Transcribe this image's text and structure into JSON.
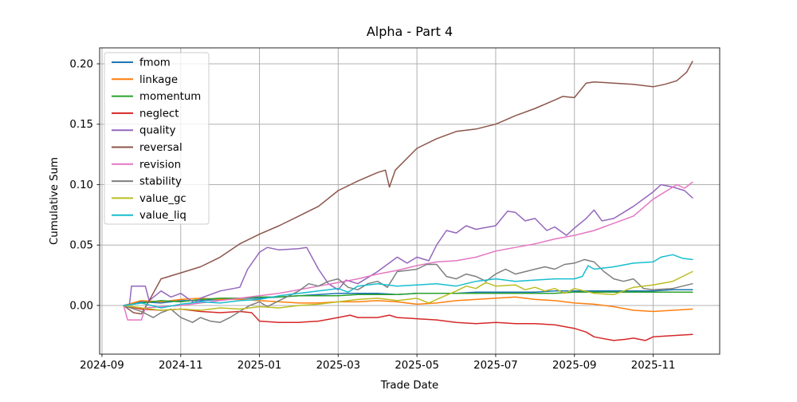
{
  "chart_data": {
    "type": "line",
    "title": "Alpha - Part 4",
    "xlabel": "Trade Date",
    "ylabel": "Cumulative Sum",
    "x_unit": "months since 2024-09-01",
    "xlim": [
      -0.06,
      15.69
    ],
    "ylim": [
      -0.0403,
      0.2132
    ],
    "grid": true,
    "grid_color": "#b0b0b0",
    "legend_position": "upper left",
    "xticks": [
      {
        "m": 0,
        "label": "2024-09"
      },
      {
        "m": 2,
        "label": "2024-11"
      },
      {
        "m": 4,
        "label": "2025-01"
      },
      {
        "m": 6,
        "label": "2025-03"
      },
      {
        "m": 8,
        "label": "2025-05"
      },
      {
        "m": 10,
        "label": "2025-07"
      },
      {
        "m": 12,
        "label": "2025-09"
      },
      {
        "m": 14,
        "label": "2025-11"
      }
    ],
    "yticks": [
      {
        "v": 0.0,
        "label": "0.00"
      },
      {
        "v": 0.05,
        "label": "0.05"
      },
      {
        "v": 0.1,
        "label": "0.10"
      },
      {
        "v": 0.15,
        "label": "0.15"
      },
      {
        "v": 0.2,
        "label": "0.20"
      }
    ],
    "series": [
      {
        "name": "fmom",
        "color": "#1f77b4",
        "x": [
          0.55,
          1,
          1.5,
          2,
          2.5,
          3,
          3.5,
          4,
          4.5,
          5,
          5.5,
          6,
          6.5,
          7,
          7.5,
          8,
          8.5,
          9,
          9.5,
          10,
          10.5,
          11,
          11.5,
          12,
          12.5,
          13,
          13.5,
          14,
          14.5,
          15
        ],
        "y": [
          0,
          0.003,
          0.002,
          0.004,
          0.004,
          0.005,
          0.006,
          0.006,
          0.007,
          0.008,
          0.009,
          0.01,
          0.01,
          0.01,
          0.009,
          0.01,
          0.01,
          0.01,
          0.011,
          0.011,
          0.011,
          0.011,
          0.012,
          0.012,
          0.012,
          0.012,
          0.012,
          0.012,
          0.013,
          0.013
        ]
      },
      {
        "name": "linkage",
        "color": "#ff7f0e",
        "x": [
          0.55,
          1,
          1.5,
          2,
          2.5,
          3,
          3.5,
          4,
          4.5,
          5,
          5.5,
          6,
          6.5,
          7,
          7.5,
          8,
          8.5,
          9,
          9.5,
          10,
          10.5,
          11,
          11.5,
          12,
          12.5,
          13,
          13.5,
          14,
          14.5,
          15
        ],
        "y": [
          0,
          0.004,
          0.003,
          0.005,
          0.006,
          0.005,
          0.005,
          0.004,
          0.003,
          0.002,
          0.002,
          0.003,
          0.003,
          0.004,
          0.003,
          0.001,
          0.002,
          0.004,
          0.005,
          0.006,
          0.007,
          0.005,
          0.004,
          0.002,
          0.001,
          -0.001,
          -0.004,
          -0.005,
          -0.004,
          -0.003
        ]
      },
      {
        "name": "momentum",
        "color": "#2ca02c",
        "x": [
          0.55,
          1,
          1.5,
          2,
          2.5,
          3,
          3.5,
          4,
          4.5,
          5,
          5.5,
          6,
          6.5,
          7,
          7.5,
          8,
          8.5,
          9,
          9.5,
          10,
          10.5,
          11,
          11.5,
          12,
          12.5,
          13,
          13.5,
          14,
          14.5,
          15
        ],
        "y": [
          0,
          0.002,
          0.004,
          0.003,
          0.005,
          0.006,
          0.006,
          0.007,
          0.007,
          0.008,
          0.008,
          0.008,
          0.009,
          0.009,
          0.009,
          0.01,
          0.01,
          0.01,
          0.01,
          0.01,
          0.01,
          0.01,
          0.01,
          0.011,
          0.011,
          0.011,
          0.011,
          0.011,
          0.011,
          0.011
        ]
      },
      {
        "name": "neglect",
        "color": "#d62728",
        "x": [
          0.55,
          1,
          1.5,
          2,
          2.5,
          3,
          3.5,
          3.8,
          4,
          4.5,
          5,
          5.5,
          6,
          6.3,
          6.5,
          7,
          7.3,
          7.5,
          8,
          8.5,
          9,
          9.5,
          10,
          10.5,
          11,
          11.5,
          12,
          12.3,
          12.5,
          13,
          13.3,
          13.5,
          13.8,
          14,
          14.5,
          15
        ],
        "y": [
          0,
          -0.003,
          -0.004,
          -0.003,
          -0.005,
          -0.006,
          -0.005,
          -0.006,
          -0.013,
          -0.014,
          -0.014,
          -0.013,
          -0.01,
          -0.008,
          -0.01,
          -0.01,
          -0.008,
          -0.01,
          -0.011,
          -0.012,
          -0.014,
          -0.015,
          -0.014,
          -0.015,
          -0.015,
          -0.016,
          -0.019,
          -0.022,
          -0.026,
          -0.029,
          -0.028,
          -0.027,
          -0.029,
          -0.026,
          -0.025,
          -0.024
        ]
      },
      {
        "name": "quality",
        "color": "#9467bd",
        "x": [
          0.55,
          0.7,
          0.75,
          1.1,
          1.2,
          1.5,
          1.75,
          2,
          2.35,
          2.5,
          3,
          3.5,
          3.7,
          4,
          4.2,
          4.5,
          5,
          5.2,
          5.5,
          5.75,
          6,
          6.2,
          6.5,
          7,
          7.5,
          7.75,
          8,
          8.3,
          8.5,
          8.75,
          9,
          9.25,
          9.5,
          10,
          10.3,
          10.5,
          10.75,
          11,
          11.3,
          11.5,
          11.8,
          12,
          12.3,
          12.5,
          12.7,
          13,
          13.3,
          13.5,
          14,
          14.2,
          14.5,
          14.8,
          15
        ],
        "y": [
          0,
          0.001,
          0.016,
          0.016,
          0.004,
          0.012,
          0.007,
          0.01,
          0.002,
          0.006,
          0.012,
          0.015,
          0.03,
          0.044,
          0.048,
          0.046,
          0.047,
          0.048,
          0.03,
          0.018,
          0.013,
          0.021,
          0.018,
          0.028,
          0.04,
          0.035,
          0.04,
          0.037,
          0.05,
          0.062,
          0.06,
          0.066,
          0.063,
          0.066,
          0.078,
          0.077,
          0.07,
          0.072,
          0.062,
          0.065,
          0.058,
          0.064,
          0.072,
          0.079,
          0.07,
          0.072,
          0.078,
          0.082,
          0.094,
          0.1,
          0.098,
          0.095,
          0.089
        ]
      },
      {
        "name": "reversal",
        "color": "#8c564b",
        "x": [
          0.55,
          0.8,
          1,
          1.2,
          1.5,
          2,
          2.5,
          3,
          3.5,
          4,
          4.5,
          5,
          5.5,
          6,
          6.5,
          7,
          7.2,
          7.3,
          7.45,
          8,
          8.5,
          9,
          9.5,
          10,
          10.5,
          11,
          11.5,
          11.7,
          12,
          12.3,
          12.5,
          13,
          13.5,
          14,
          14.3,
          14.6,
          14.85,
          15
        ],
        "y": [
          0,
          -0.006,
          -0.007,
          0.004,
          0.022,
          0.027,
          0.032,
          0.04,
          0.051,
          0.059,
          0.066,
          0.074,
          0.082,
          0.095,
          0.103,
          0.11,
          0.112,
          0.098,
          0.112,
          0.13,
          0.138,
          0.144,
          0.146,
          0.15,
          0.157,
          0.163,
          0.17,
          0.173,
          0.172,
          0.184,
          0.185,
          0.184,
          0.183,
          0.181,
          0.183,
          0.186,
          0.193,
          0.202
        ]
      },
      {
        "name": "revision",
        "color": "#e377c2",
        "x": [
          0.55,
          0.65,
          1,
          1.1,
          1.5,
          2,
          2.5,
          3,
          3.5,
          4,
          4.5,
          5,
          5.5,
          6,
          6.5,
          7,
          7.5,
          8,
          8.5,
          9,
          9.5,
          10,
          10.5,
          11,
          11.5,
          12,
          12.5,
          13,
          13.5,
          14,
          14.3,
          14.6,
          14.8,
          15
        ],
        "y": [
          0,
          -0.012,
          -0.012,
          -0.002,
          -0.001,
          0.0,
          0.002,
          0.004,
          0.006,
          0.008,
          0.01,
          0.013,
          0.016,
          0.019,
          0.022,
          0.026,
          0.029,
          0.033,
          0.036,
          0.037,
          0.04,
          0.045,
          0.048,
          0.051,
          0.055,
          0.058,
          0.062,
          0.068,
          0.074,
          0.088,
          0.094,
          0.1,
          0.097,
          0.102
        ]
      },
      {
        "name": "stability",
        "color": "#7f7f7f",
        "x": [
          0.55,
          1,
          1.3,
          1.5,
          1.75,
          2,
          2.3,
          2.5,
          2.75,
          3,
          3.25,
          3.5,
          3.75,
          4,
          4.2,
          4.5,
          5,
          5.25,
          5.5,
          5.75,
          6,
          6.25,
          6.5,
          6.75,
          7,
          7.25,
          7.5,
          8,
          8.25,
          8.5,
          8.75,
          9,
          9.25,
          9.5,
          9.75,
          10,
          10.25,
          10.5,
          11,
          11.25,
          11.5,
          11.75,
          12,
          12.25,
          12.5,
          12.75,
          13,
          13.25,
          13.5,
          13.75,
          14,
          14.5,
          15
        ],
        "y": [
          0,
          -0.005,
          -0.01,
          -0.006,
          -0.003,
          -0.01,
          -0.014,
          -0.01,
          -0.013,
          -0.014,
          -0.01,
          -0.005,
          0.0,
          0.003,
          -0.001,
          0.004,
          0.012,
          0.018,
          0.016,
          0.02,
          0.022,
          0.015,
          0.013,
          0.018,
          0.02,
          0.015,
          0.028,
          0.03,
          0.034,
          0.034,
          0.024,
          0.022,
          0.026,
          0.024,
          0.02,
          0.026,
          0.03,
          0.026,
          0.03,
          0.032,
          0.03,
          0.034,
          0.035,
          0.038,
          0.036,
          0.028,
          0.022,
          0.02,
          0.022,
          0.014,
          0.013,
          0.014,
          0.018
        ]
      },
      {
        "name": "value_gc",
        "color": "#bcbd22",
        "x": [
          0.55,
          1,
          1.5,
          2,
          2.5,
          3,
          3.5,
          4,
          4.5,
          5,
          5.5,
          6,
          6.5,
          7,
          7.5,
          8,
          8.3,
          8.5,
          9,
          9.25,
          9.5,
          9.75,
          10,
          10.5,
          10.75,
          11,
          11.25,
          11.5,
          11.75,
          12,
          12.5,
          13,
          13.5,
          14,
          14.5,
          15
        ],
        "y": [
          0,
          -0.002,
          -0.004,
          -0.003,
          -0.004,
          -0.002,
          -0.003,
          -0.001,
          -0.002,
          0.0,
          0.001,
          0.003,
          0.005,
          0.006,
          0.004,
          0.006,
          0.002,
          0.005,
          0.012,
          0.016,
          0.014,
          0.019,
          0.016,
          0.017,
          0.013,
          0.015,
          0.012,
          0.014,
          0.01,
          0.014,
          0.01,
          0.009,
          0.015,
          0.017,
          0.02,
          0.028
        ]
      },
      {
        "name": "value_liq",
        "color": "#17becf",
        "x": [
          0.55,
          1,
          1.5,
          2,
          2.5,
          3,
          3.5,
          4,
          4.5,
          5,
          5.5,
          6,
          6.25,
          6.5,
          7,
          7.5,
          8,
          8.5,
          9,
          9.5,
          10,
          10.5,
          11,
          11.5,
          12,
          12.2,
          12.35,
          12.5,
          13,
          13.5,
          14,
          14.2,
          14.5,
          14.75,
          15
        ],
        "y": [
          0,
          0.002,
          -0.002,
          0.001,
          0.003,
          0.002,
          0.004,
          0.005,
          0.008,
          0.01,
          0.012,
          0.014,
          0.011,
          0.016,
          0.018,
          0.016,
          0.017,
          0.018,
          0.016,
          0.02,
          0.022,
          0.02,
          0.021,
          0.022,
          0.022,
          0.024,
          0.033,
          0.03,
          0.032,
          0.035,
          0.036,
          0.04,
          0.042,
          0.039,
          0.038
        ]
      }
    ]
  }
}
